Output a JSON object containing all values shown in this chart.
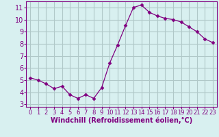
{
  "x": [
    0,
    1,
    2,
    3,
    4,
    5,
    6,
    7,
    8,
    9,
    10,
    11,
    12,
    13,
    14,
    15,
    16,
    17,
    18,
    19,
    20,
    21,
    22,
    23
  ],
  "y": [
    5.2,
    5.0,
    4.7,
    4.3,
    4.5,
    3.8,
    3.5,
    3.8,
    3.5,
    4.4,
    6.4,
    7.9,
    9.5,
    11.0,
    11.2,
    10.6,
    10.3,
    10.1,
    10.0,
    9.8,
    9.4,
    9.0,
    8.4,
    8.1
  ],
  "line_color": "#800080",
  "marker": "D",
  "marker_size": 2.5,
  "bg_color": "#d8f0f0",
  "grid_color": "#b0c8c8",
  "xlabel": "Windchill (Refroidissement éolien,°C)",
  "ylabel": "",
  "xlim": [
    -0.5,
    23.5
  ],
  "ylim": [
    2.8,
    11.5
  ],
  "yticks": [
    3,
    4,
    5,
    6,
    7,
    8,
    9,
    10,
    11
  ],
  "xticks": [
    0,
    1,
    2,
    3,
    4,
    5,
    6,
    7,
    8,
    9,
    10,
    11,
    12,
    13,
    14,
    15,
    16,
    17,
    18,
    19,
    20,
    21,
    22,
    23
  ],
  "spine_color": "#800080",
  "tick_color": "#800080",
  "label_color": "#800080",
  "xlabel_fontsize": 7,
  "tick_fontsize_y": 7,
  "tick_fontsize_x": 6
}
